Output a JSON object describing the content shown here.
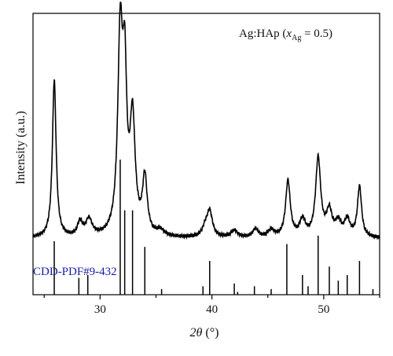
{
  "chart_data": {
    "type": "line",
    "xlabel_symbol": "2θ",
    "xlabel_unit": "(°)",
    "ylabel": "Intensity (a.u.)",
    "xlim": [
      24,
      55
    ],
    "ylim": [
      0,
      100
    ],
    "xticks": [
      30,
      40,
      50
    ],
    "yticks_shown": false,
    "grid": false,
    "annotation": {
      "prefix": "Ag:HAp (",
      "var": "x",
      "sub": "Ag",
      "suffix": " = 0.5)"
    },
    "reference": {
      "name": "CDD-PDF#9-432",
      "lines": [
        {
          "x": 25.9,
          "h": 19
        },
        {
          "x": 28.1,
          "h": 6
        },
        {
          "x": 28.9,
          "h": 7
        },
        {
          "x": 31.8,
          "h": 48
        },
        {
          "x": 32.2,
          "h": 30
        },
        {
          "x": 32.9,
          "h": 30
        },
        {
          "x": 34.0,
          "h": 17
        },
        {
          "x": 35.5,
          "h": 2
        },
        {
          "x": 39.2,
          "h": 3
        },
        {
          "x": 39.8,
          "h": 12
        },
        {
          "x": 42.0,
          "h": 4
        },
        {
          "x": 42.3,
          "h": 1
        },
        {
          "x": 43.8,
          "h": 3
        },
        {
          "x": 45.3,
          "h": 2
        },
        {
          "x": 46.7,
          "h": 18
        },
        {
          "x": 48.1,
          "h": 7
        },
        {
          "x": 48.6,
          "h": 3
        },
        {
          "x": 49.5,
          "h": 21
        },
        {
          "x": 50.5,
          "h": 10
        },
        {
          "x": 51.3,
          "h": 5
        },
        {
          "x": 52.1,
          "h": 7
        },
        {
          "x": 53.2,
          "h": 12
        },
        {
          "x": 54.4,
          "h": 2
        }
      ]
    },
    "series": [
      {
        "baseline": 20,
        "peaks": [
          {
            "x": 25.9,
            "h": 56,
            "w": 0.2
          },
          {
            "x": 28.2,
            "h": 5,
            "w": 0.25
          },
          {
            "x": 29.0,
            "h": 6,
            "w": 0.35
          },
          {
            "x": 31.8,
            "h": 69,
            "w": 0.26
          },
          {
            "x": 32.2,
            "h": 50,
            "w": 0.22
          },
          {
            "x": 32.9,
            "h": 40,
            "w": 0.28
          },
          {
            "x": 34.0,
            "h": 20,
            "w": 0.25
          },
          {
            "x": 35.4,
            "h": 2,
            "w": 0.4
          },
          {
            "x": 39.4,
            "h": 3,
            "w": 0.3
          },
          {
            "x": 39.8,
            "h": 9,
            "w": 0.3
          },
          {
            "x": 42.0,
            "h": 2.5,
            "w": 0.35
          },
          {
            "x": 43.9,
            "h": 3,
            "w": 0.3
          },
          {
            "x": 45.3,
            "h": 2.5,
            "w": 0.35
          },
          {
            "x": 46.8,
            "h": 20,
            "w": 0.25
          },
          {
            "x": 48.1,
            "h": 6,
            "w": 0.3
          },
          {
            "x": 49.5,
            "h": 28,
            "w": 0.27
          },
          {
            "x": 50.5,
            "h": 9,
            "w": 0.3
          },
          {
            "x": 51.3,
            "h": 5,
            "w": 0.3
          },
          {
            "x": 52.1,
            "h": 6,
            "w": 0.3
          },
          {
            "x": 53.2,
            "h": 18,
            "w": 0.22
          }
        ]
      }
    ]
  }
}
